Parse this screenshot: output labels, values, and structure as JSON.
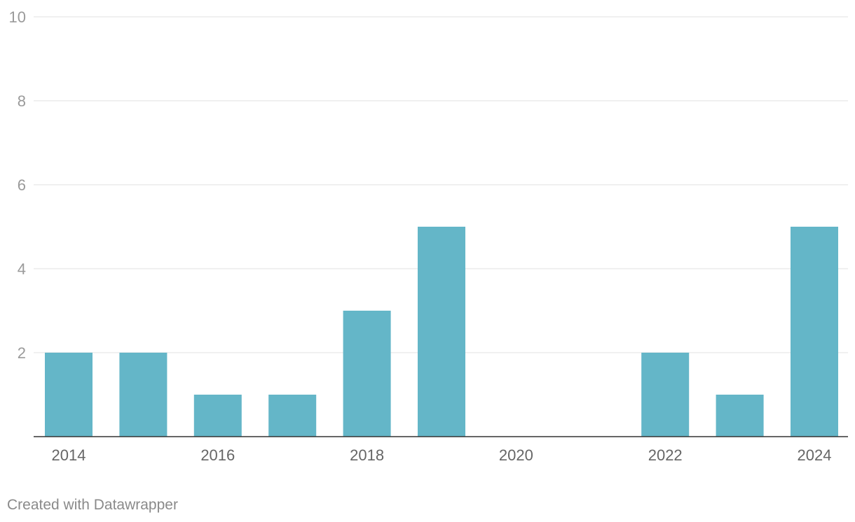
{
  "chart_data": {
    "type": "bar",
    "categories": [
      "2014",
      "2015",
      "2016",
      "2017",
      "2018",
      "2019",
      "2020",
      "2021",
      "2022",
      "2023",
      "2024"
    ],
    "x_tick_labels": [
      "2014",
      "2016",
      "2018",
      "2020",
      "2022",
      "2024"
    ],
    "values": [
      2,
      2,
      1,
      1,
      3,
      5,
      0,
      0,
      2,
      1,
      5
    ],
    "ylim": [
      0,
      10
    ],
    "yticks": [
      2,
      4,
      6,
      8,
      10
    ],
    "title": "",
    "xlabel": "",
    "ylabel": "",
    "grid": true,
    "bar_color": "#64b6c8"
  },
  "footer": {
    "credit": "Created with Datawrapper"
  }
}
